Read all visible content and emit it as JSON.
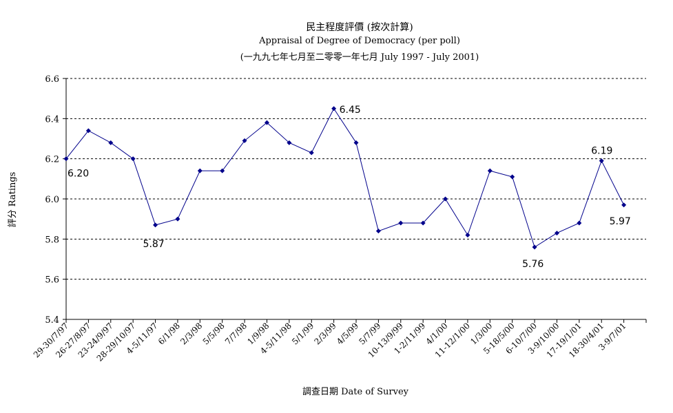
{
  "chart_data": {
    "type": "line",
    "title": "民主程度評價 (按次計算)",
    "subtitle": "Appraisal of Degree of Democracy (per poll)",
    "subtitle2": "(一九九七年七月至二零零一年七月 July 1997 - July 2001)",
    "xlabel": "調查日期 Date of Survey",
    "ylabel": "評分 Ratings",
    "ylim": [
      5.4,
      6.6
    ],
    "yticks": [
      "5.4",
      "5.6",
      "5.8",
      "6.0",
      "6.2",
      "6.4",
      "6.6"
    ],
    "grid": true,
    "line_color": "#00008b",
    "categories": [
      "29-30/7/97",
      "26-27/8/97",
      "23-24/9/97",
      "28-29/10/97",
      "4-5/11/97",
      "6/1/98",
      "2/3/98",
      "5/5/98",
      "7/7/98",
      "1/9/98",
      "4-5/11/98",
      "5/1/99",
      "2/3/99",
      "4/5/99",
      "5/7/99",
      "10-13/9/99",
      "1-2/11/99",
      "4/1/00",
      "11-12/1/00",
      "1/3/00",
      "5-18/5/00",
      "6-10/7/00",
      "3-9/10/00",
      "17-19/1/01",
      "18-30/4/01",
      "3-9/7/01"
    ],
    "values": [
      6.2,
      6.34,
      6.28,
      6.2,
      5.87,
      5.9,
      6.14,
      6.14,
      6.29,
      6.38,
      6.28,
      6.23,
      6.45,
      6.28,
      5.84,
      5.88,
      5.88,
      6.0,
      5.82,
      6.14,
      6.11,
      5.76,
      5.83,
      5.88,
      6.19,
      5.97
    ],
    "data_labels": [
      {
        "index": 0,
        "text": "6.20"
      },
      {
        "index": 4,
        "text": "5.87"
      },
      {
        "index": 12,
        "text": "6.45"
      },
      {
        "index": 21,
        "text": "5.76"
      },
      {
        "index": 24,
        "text": "6.19"
      },
      {
        "index": 25,
        "text": "5.97"
      }
    ]
  }
}
